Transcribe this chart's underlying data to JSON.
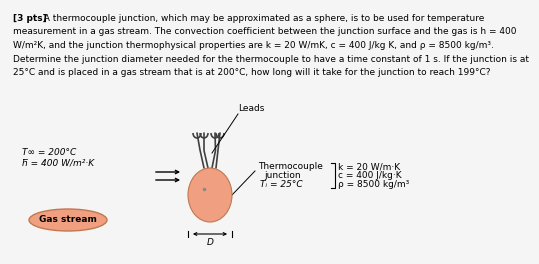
{
  "background_color": "#f5f5f5",
  "sphere_color": "#f0a080",
  "sphere_edge_color": "#c07850",
  "gas_stream_bg": "#f0a080",
  "gas_stream_border": "#c07850",
  "text_color": "#000000",
  "wire_color": "#404040",
  "fs_small": 6.8,
  "fs_body": 6.5,
  "body_lines": [
    "[3 pts]  A thermocouple junction, which may be approximated as a sphere, is to be used for temperature",
    "measurement in a gas stream. The convection coefficient between the junction surface and the gas is h = 400",
    "W/m²K, and the junction thermophysical properties are k = 20 W/mK, c = 400 J/kg K, and ρ = 8500 kg/m³.",
    "Determine the junction diameter needed for the thermocouple to have a time constant of 1 s. If the junction is at",
    "25°C and is placed in a gas stream that is at 200°C, how long will it take for the junction to reach 199°C?"
  ],
  "bold_prefix": "[3 pts]",
  "Tinf_label": "T∞ = 200°C",
  "h_label": "h̅ = 400 W/m²·K",
  "leads_label": "Leads",
  "gas_label": "Gas stream",
  "D_label": "D",
  "tc_line1": "Thermocouple",
  "tc_line2": "junction",
  "tc_line3": "Tᵢ = 25°C",
  "prop1": "k = 20 W/m·K",
  "prop2": "c = 400 J/kg·K",
  "prop3": "ρ = 8500 kg/m³"
}
